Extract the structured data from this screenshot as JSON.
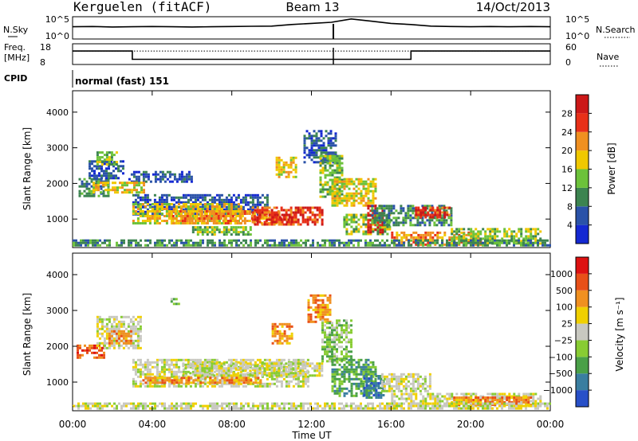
{
  "header": {
    "station": "Kerguelen (fitACF)",
    "beam": "Beam 13",
    "date": "14/Oct/2013"
  },
  "noise_panel": {
    "left_label": "N.Sky",
    "left_ticks": [
      "10^5",
      "10^0"
    ],
    "right_label": "N.Search",
    "right_ticks": [
      "10^5",
      "10^0"
    ]
  },
  "freq_panel": {
    "left_label_line1": "Freq.",
    "left_label_line2": "[MHz]",
    "left_ticks": [
      "18",
      "8"
    ],
    "right_label": "Nave",
    "right_ticks": [
      "60",
      "0"
    ]
  },
  "cpid": {
    "label": "CPID",
    "value": "normal (fast) 151"
  },
  "chart_data": [
    {
      "type": "heatmap",
      "name": "power-panel",
      "ylabel": "Slant Range [km]",
      "ylim": [
        200,
        4600
      ],
      "yticks": [
        "1000",
        "2000",
        "3000",
        "4000"
      ],
      "xlim_hours": [
        0,
        24
      ],
      "colorbar": {
        "label": "Power [dB]",
        "ticks": [
          "4",
          "8",
          "12",
          "16",
          "20",
          "24",
          "28"
        ],
        "colors": [
          "#1428d2",
          "#2a52a8",
          "#3c8450",
          "#6cc23a",
          "#f0c800",
          "#f09020",
          "#e83018",
          "#cc1818"
        ]
      },
      "patches": [
        {
          "t0": 0.3,
          "t1": 1.8,
          "r0": 1650,
          "r1": 2150,
          "c": 2
        },
        {
          "t0": 0.8,
          "t1": 2.6,
          "r0": 2150,
          "r1": 2650,
          "c": 1
        },
        {
          "t0": 1.2,
          "t1": 2.2,
          "r0": 2500,
          "r1": 2900,
          "c": 3
        },
        {
          "t0": 2.8,
          "t1": 6.0,
          "r0": 2050,
          "r1": 2350,
          "c": 1
        },
        {
          "t0": 1.0,
          "t1": 3.6,
          "r0": 1750,
          "r1": 2050,
          "c": 4
        },
        {
          "t0": 3.0,
          "t1": 9.8,
          "r0": 1150,
          "r1": 1700,
          "c": 1
        },
        {
          "t0": 3.0,
          "t1": 8.5,
          "r0": 900,
          "r1": 1450,
          "c": 4
        },
        {
          "t0": 5.0,
          "t1": 10.5,
          "r0": 850,
          "r1": 1250,
          "c": 5
        },
        {
          "t0": 9.0,
          "t1": 12.5,
          "r0": 850,
          "r1": 1350,
          "c": 6
        },
        {
          "t0": 10.0,
          "t1": 11.2,
          "r0": 900,
          "r1": 1150,
          "c": 7
        },
        {
          "t0": 6.0,
          "t1": 9.0,
          "r0": 550,
          "r1": 800,
          "c": 3
        },
        {
          "t0": 10.2,
          "t1": 11.2,
          "r0": 2150,
          "r1": 2750,
          "c": 4
        },
        {
          "t0": 11.6,
          "t1": 13.2,
          "r0": 2600,
          "r1": 3500,
          "c": 1
        },
        {
          "t0": 12.4,
          "t1": 13.6,
          "r0": 1600,
          "r1": 2800,
          "c": 3
        },
        {
          "t0": 13.0,
          "t1": 15.2,
          "r0": 1350,
          "r1": 2150,
          "c": 4
        },
        {
          "t0": 13.6,
          "t1": 16.0,
          "r0": 600,
          "r1": 1150,
          "c": 3
        },
        {
          "t0": 14.8,
          "t1": 15.6,
          "r0": 650,
          "r1": 1400,
          "c": 7
        },
        {
          "t0": 15.0,
          "t1": 19.0,
          "r0": 800,
          "r1": 1400,
          "c": 2
        },
        {
          "t0": 16.0,
          "t1": 20.5,
          "r0": 300,
          "r1": 650,
          "c": 5
        },
        {
          "t0": 19.0,
          "t1": 23.5,
          "r0": 300,
          "r1": 750,
          "c": 3
        },
        {
          "t0": 17.2,
          "t1": 19.0,
          "r0": 1050,
          "r1": 1350,
          "c": 6
        },
        {
          "t0": 0.0,
          "t1": 24.0,
          "r0": 230,
          "r1": 430,
          "c": 2
        }
      ]
    },
    {
      "type": "heatmap",
      "name": "velocity-panel",
      "ylabel": "Slant Range [km]",
      "ylim": [
        200,
        4600
      ],
      "yticks": [
        "1000",
        "2000",
        "3000",
        "4000"
      ],
      "xlabel": "Time UT",
      "xticks": [
        "00:00",
        "04:00",
        "08:00",
        "12:00",
        "16:00",
        "20:00",
        "00:00"
      ],
      "xlim_hours": [
        0,
        24
      ],
      "colorbar": {
        "label": "Velocity [m s⁻¹]",
        "ticks": [
          "1000",
          "500",
          "100",
          "25",
          "−25",
          "−100",
          "−500",
          "−1000"
        ],
        "colors": [
          "#2850c8",
          "#3a7ea0",
          "#4aa048",
          "#88cc33",
          "#c8c8c0",
          "#f0d000",
          "#f09020",
          "#e85018",
          "#dd1111"
        ]
      },
      "patches": [
        {
          "t0": 0.2,
          "t1": 1.6,
          "r0": 1650,
          "r1": 2050,
          "c": 7
        },
        {
          "t0": 1.2,
          "t1": 3.4,
          "r0": 1950,
          "r1": 2850,
          "c": 4
        },
        {
          "t0": 1.8,
          "t1": 3.0,
          "r0": 2050,
          "r1": 2450,
          "c": 6
        },
        {
          "t0": 3.0,
          "t1": 11.8,
          "r0": 850,
          "r1": 1650,
          "c": 4
        },
        {
          "t0": 5.5,
          "t1": 12.5,
          "r0": 1150,
          "r1": 1550,
          "c": 4
        },
        {
          "t0": 3.5,
          "t1": 9.5,
          "r0": 950,
          "r1": 1150,
          "c": 6
        },
        {
          "t0": 10.0,
          "t1": 11.0,
          "r0": 2050,
          "r1": 2650,
          "c": 6
        },
        {
          "t0": 11.8,
          "t1": 13.0,
          "r0": 2650,
          "r1": 3450,
          "c": 6
        },
        {
          "t0": 12.5,
          "t1": 14.0,
          "r0": 1600,
          "r1": 2750,
          "c": 3
        },
        {
          "t0": 13.0,
          "t1": 15.2,
          "r0": 600,
          "r1": 1650,
          "c": 2
        },
        {
          "t0": 14.6,
          "t1": 15.6,
          "r0": 550,
          "r1": 1200,
          "c": 1
        },
        {
          "t0": 15.5,
          "t1": 18.0,
          "r0": 750,
          "r1": 1250,
          "c": 4
        },
        {
          "t0": 16.0,
          "t1": 23.5,
          "r0": 300,
          "r1": 700,
          "c": 4
        },
        {
          "t0": 19.0,
          "t1": 23.0,
          "r0": 350,
          "r1": 600,
          "c": 6
        },
        {
          "t0": 4.8,
          "t1": 5.3,
          "r0": 3150,
          "r1": 3350,
          "c": 3
        },
        {
          "t0": 0.0,
          "t1": 24.0,
          "r0": 230,
          "r1": 430,
          "c": 4
        }
      ]
    }
  ],
  "noise_trace": {
    "times": [
      0,
      1,
      2,
      3,
      4,
      5,
      6,
      7,
      8,
      9,
      10,
      11,
      12,
      13,
      14,
      15,
      16,
      17,
      18,
      19,
      20,
      21,
      22,
      23,
      24
    ],
    "level": [
      0.45,
      0.44,
      0.46,
      0.45,
      0.44,
      0.45,
      0.46,
      0.45,
      0.44,
      0.43,
      0.42,
      0.35,
      0.3,
      0.25,
      0.1,
      0.2,
      0.3,
      0.35,
      0.42,
      0.44,
      0.45,
      0.44,
      0.45,
      0.44,
      0.45
    ]
  },
  "freq_trace": {
    "steps": [
      {
        "t0": 0.0,
        "t1": 3.0,
        "level": 0.35
      },
      {
        "t0": 3.0,
        "t1": 17.0,
        "level": 0.75
      },
      {
        "t0": 17.0,
        "t1": 24.0,
        "level": 0.35
      }
    ],
    "nave_level": 0.35
  }
}
